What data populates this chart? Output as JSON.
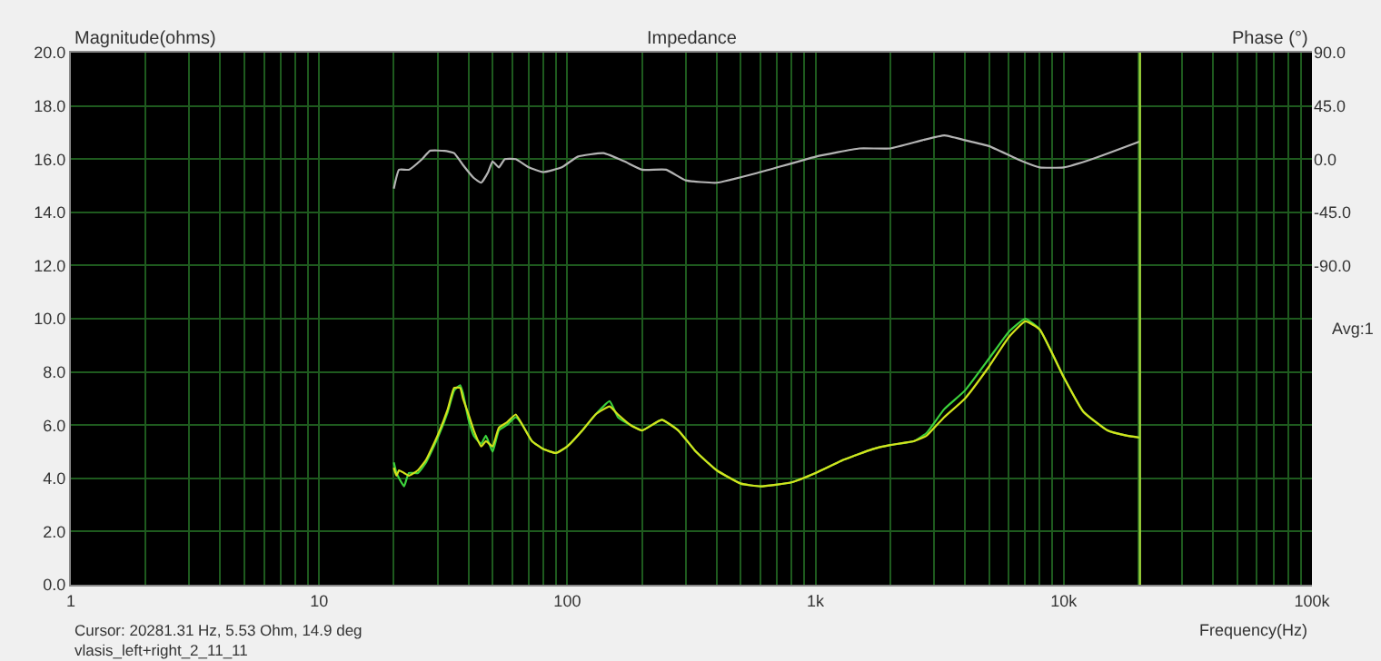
{
  "chart_data": {
    "type": "line",
    "title": "Impedance",
    "xlabel": "Frequency(Hz)",
    "ylabel": "Magnitude(ohms)",
    "y2label": "Phase (°)",
    "annotations": [
      "Cursor: 20281.31 Hz, 5.53 Ohm, 14.9 deg",
      "vlasis_left+right_2_11_11",
      "Avg:1"
    ],
    "log": "x",
    "grid": true,
    "marker": "none",
    "line_style": "solid",
    "xlim": [
      1,
      100000
    ],
    "xticks": [
      {
        "value": 1,
        "label": "1"
      },
      {
        "value": 2,
        "label": null
      },
      {
        "value": 3,
        "label": null
      },
      {
        "value": 4,
        "label": null
      },
      {
        "value": 5,
        "label": null
      },
      {
        "value": 6,
        "label": null
      },
      {
        "value": 7,
        "label": null
      },
      {
        "value": 8,
        "label": null
      },
      {
        "value": 9,
        "label": null
      },
      {
        "value": 10,
        "label": "10"
      },
      {
        "value": 20,
        "label": null
      },
      {
        "value": 30,
        "label": null
      },
      {
        "value": 40,
        "label": null
      },
      {
        "value": 50,
        "label": null
      },
      {
        "value": 60,
        "label": null
      },
      {
        "value": 70,
        "label": null
      },
      {
        "value": 80,
        "label": null
      },
      {
        "value": 90,
        "label": null
      },
      {
        "value": 100,
        "label": "100"
      },
      {
        "value": 200,
        "label": null
      },
      {
        "value": 300,
        "label": null
      },
      {
        "value": 400,
        "label": null
      },
      {
        "value": 500,
        "label": null
      },
      {
        "value": 600,
        "label": null
      },
      {
        "value": 700,
        "label": null
      },
      {
        "value": 800,
        "label": null
      },
      {
        "value": 900,
        "label": null
      },
      {
        "value": 1000,
        "label": "1k"
      },
      {
        "value": 2000,
        "label": null
      },
      {
        "value": 3000,
        "label": null
      },
      {
        "value": 4000,
        "label": null
      },
      {
        "value": 5000,
        "label": null
      },
      {
        "value": 6000,
        "label": null
      },
      {
        "value": 7000,
        "label": null
      },
      {
        "value": 8000,
        "label": null
      },
      {
        "value": 9000,
        "label": null
      },
      {
        "value": 10000,
        "label": "10k"
      },
      {
        "value": 20000,
        "label": null
      },
      {
        "value": 30000,
        "label": null
      },
      {
        "value": 40000,
        "label": null
      },
      {
        "value": 50000,
        "label": null
      },
      {
        "value": 60000,
        "label": null
      },
      {
        "value": 70000,
        "label": null
      },
      {
        "value": 80000,
        "label": null
      },
      {
        "value": 90000,
        "label": null
      },
      {
        "value": 100000,
        "label": "100k"
      }
    ],
    "ylim": [
      0,
      20
    ],
    "yticks": [
      {
        "value": 0,
        "label": "0.0"
      },
      {
        "value": 2,
        "label": "2.0"
      },
      {
        "value": 4,
        "label": "4.0"
      },
      {
        "value": 6,
        "label": "6.0"
      },
      {
        "value": 8,
        "label": "8.0"
      },
      {
        "value": 10,
        "label": "10.0"
      },
      {
        "value": 12,
        "label": "12.0"
      },
      {
        "value": 14,
        "label": "14.0"
      },
      {
        "value": 16,
        "label": "16.0"
      },
      {
        "value": 18,
        "label": "18.0"
      },
      {
        "value": 20,
        "label": "20.0"
      }
    ],
    "y2lim": [
      -360,
      90
    ],
    "y2ticks": [
      {
        "value": 90,
        "label": "90.0"
      },
      {
        "value": 45,
        "label": "45.0"
      },
      {
        "value": 0,
        "label": "0.0"
      },
      {
        "value": -45,
        "label": "-45.0"
      },
      {
        "value": -90,
        "label": "-90.0"
      }
    ],
    "ref_lines": [
      {
        "axis": "x",
        "value": 20281.31,
        "color": "#9ed63a",
        "line_style": "solid"
      }
    ],
    "series": [
      {
        "color": "#3cd23c",
        "x": [
          20,
          20.5,
          21,
          22,
          23,
          25,
          27,
          30,
          33,
          35,
          37,
          38,
          40,
          42,
          45,
          47,
          50,
          53,
          57,
          62,
          66,
          72,
          80,
          90,
          100,
          115,
          130,
          148,
          160,
          180,
          200,
          240,
          280,
          330,
          400,
          500,
          600,
          800,
          1000,
          1300,
          1700,
          2000,
          2500,
          2800,
          3300,
          4000,
          5000,
          6000,
          7000,
          8000,
          10000,
          12000,
          15000,
          18000,
          20281.31
        ],
        "values": [
          4.6,
          4.2,
          4.0,
          3.7,
          4.2,
          4.2,
          4.6,
          5.5,
          6.5,
          7.3,
          7.5,
          7.2,
          6.2,
          5.6,
          5.3,
          5.6,
          5.0,
          5.8,
          6.0,
          6.3,
          6.0,
          5.4,
          5.1,
          4.95,
          5.2,
          5.8,
          6.4,
          6.9,
          6.3,
          6.0,
          5.8,
          6.2,
          5.8,
          5.0,
          4.3,
          3.8,
          3.7,
          3.85,
          4.2,
          4.7,
          5.1,
          5.25,
          5.4,
          5.7,
          6.6,
          7.3,
          8.5,
          9.5,
          10.0,
          9.6,
          7.8,
          6.5,
          5.8,
          5.6,
          5.53
        ]
      },
      {
        "color": "#d4e21c",
        "x": [
          20,
          20.5,
          21,
          22,
          23,
          25,
          27,
          30,
          33,
          35,
          37,
          38,
          40,
          42,
          45,
          47,
          50,
          53,
          57,
          62,
          66,
          72,
          80,
          90,
          100,
          115,
          130,
          148,
          160,
          180,
          200,
          240,
          280,
          330,
          400,
          500,
          600,
          800,
          1000,
          1300,
          1700,
          2000,
          2500,
          2800,
          3300,
          4000,
          5000,
          6000,
          7000,
          8000,
          10000,
          12000,
          15000,
          18000,
          20281.31
        ],
        "values": [
          4.4,
          4.1,
          4.3,
          4.2,
          4.1,
          4.3,
          4.7,
          5.6,
          6.6,
          7.4,
          7.4,
          7.0,
          6.4,
          5.8,
          5.2,
          5.4,
          5.2,
          5.9,
          6.1,
          6.4,
          6.0,
          5.4,
          5.1,
          4.95,
          5.2,
          5.8,
          6.4,
          6.7,
          6.4,
          6.0,
          5.8,
          6.2,
          5.8,
          5.0,
          4.3,
          3.8,
          3.7,
          3.85,
          4.2,
          4.7,
          5.1,
          5.25,
          5.4,
          5.6,
          6.3,
          7.0,
          8.2,
          9.3,
          9.9,
          9.6,
          7.8,
          6.5,
          5.8,
          5.6,
          5.53
        ]
      },
      {
        "color": "#b4b4b4",
        "axis": "y2",
        "x": [
          20,
          21,
          23,
          26,
          28,
          32,
          35,
          38,
          42,
          45,
          48,
          50,
          53,
          56,
          62,
          70,
          80,
          95,
          110,
          140,
          170,
          200,
          250,
          300,
          400,
          600,
          1000,
          1500,
          2000,
          2700,
          3300,
          4000,
          5000,
          6500,
          8000,
          10000,
          13000,
          20281.31
        ],
        "values": [
          -25,
          -9,
          -9,
          0,
          7,
          7,
          5,
          -5,
          -16,
          -20,
          -11,
          -2,
          -7,
          0,
          0,
          -7,
          -11,
          -7,
          2,
          5,
          -2,
          -9,
          -9,
          -18,
          -20,
          -11,
          2,
          9,
          9,
          16,
          20,
          16,
          11,
          0,
          -7,
          -7,
          0,
          15
        ]
      }
    ]
  }
}
